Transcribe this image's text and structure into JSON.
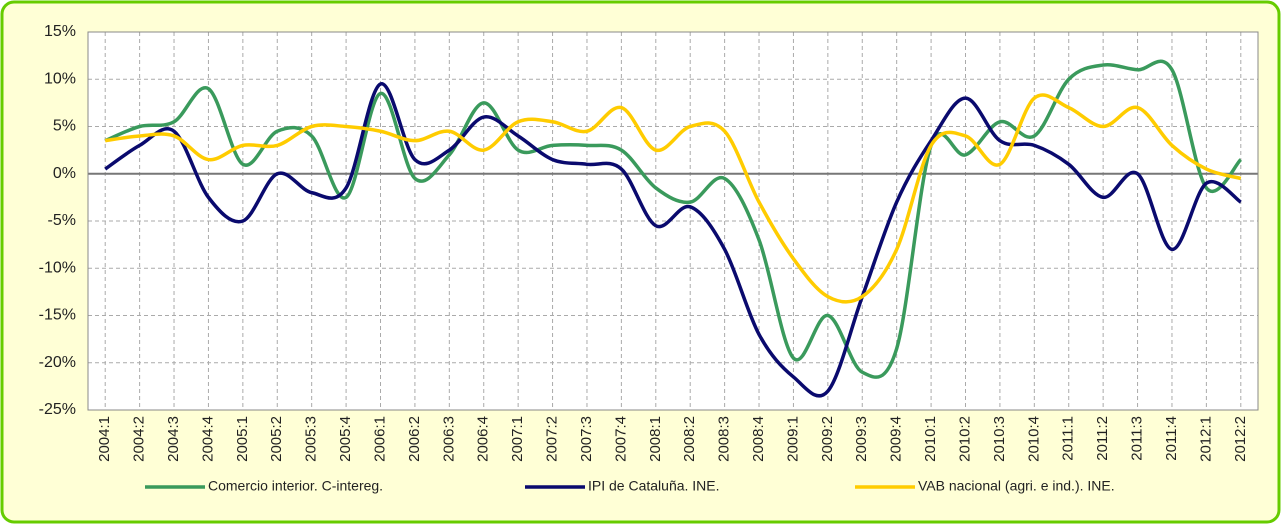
{
  "chart_data": {
    "type": "line",
    "categories": [
      "2004:1",
      "2004:2",
      "2004:3",
      "2004:4",
      "2005:1",
      "2005:2",
      "2005:3",
      "2005:4",
      "2006:1",
      "2006:2",
      "2006:3",
      "2006:4",
      "2007:1",
      "2007:2",
      "2007:3",
      "2007:4",
      "2008:1",
      "2008:2",
      "2008:3",
      "2008:4",
      "2009:1",
      "2009:2",
      "2009:3",
      "2009:4",
      "2010:1",
      "2010:2",
      "2010:3",
      "2010:4",
      "2011:1",
      "2011:2",
      "2011:3",
      "2011:4",
      "2012:1",
      "2012:2"
    ],
    "series": [
      {
        "name": "Comercio interior. C-intereg.",
        "color": "#3a9a5c",
        "values": [
          3.5,
          5,
          5.5,
          9,
          1,
          4.5,
          4,
          -2.5,
          8.5,
          -0.5,
          2,
          7.5,
          2.5,
          3,
          3,
          2.5,
          -1.5,
          -3,
          -0.5,
          -7,
          -19.5,
          -15,
          -21,
          -18.5,
          3,
          2,
          5.5,
          4,
          10,
          11.5,
          11,
          11,
          -1.5,
          1.5
        ]
      },
      {
        "name": "IPI de Cataluña. INE.",
        "color": "#0a0a6e",
        "values": [
          0.5,
          3,
          4.5,
          -2.5,
          -5,
          0,
          -2,
          -1.5,
          9.5,
          1.5,
          2.5,
          6,
          4,
          1.5,
          1,
          0.5,
          -5.5,
          -3.5,
          -8,
          -17,
          -21.5,
          -23,
          -13,
          -3,
          3.5,
          8,
          3.5,
          3,
          1,
          -2.5,
          0,
          -8,
          -1,
          -3
        ]
      },
      {
        "name": "VAB nacional (agri. e ind.). INE.",
        "color": "#ffcc00",
        "values": [
          3.5,
          4,
          4,
          1.5,
          3,
          3,
          5,
          5,
          4.5,
          3.5,
          4.5,
          2.5,
          5.5,
          5.5,
          4.5,
          7,
          2.5,
          5,
          4.5,
          -3,
          -9,
          -13,
          -13,
          -8,
          3,
          4,
          1,
          8,
          7,
          5,
          7,
          3,
          0.5,
          -0.5
        ]
      }
    ],
    "ylim": [
      -25,
      15
    ],
    "yticks": [
      {
        "value": -25,
        "label": "-25%"
      },
      {
        "value": -20,
        "label": "-20%"
      },
      {
        "value": -15,
        "label": "-15%"
      },
      {
        "value": -10,
        "label": "-10%"
      },
      {
        "value": -5,
        "label": "-5%"
      },
      {
        "value": 0,
        "label": "0%"
      },
      {
        "value": 5,
        "label": "5%"
      },
      {
        "value": 10,
        "label": "10%"
      },
      {
        "value": 15,
        "label": "15%"
      }
    ],
    "grid": true,
    "legend": "bottom"
  }
}
